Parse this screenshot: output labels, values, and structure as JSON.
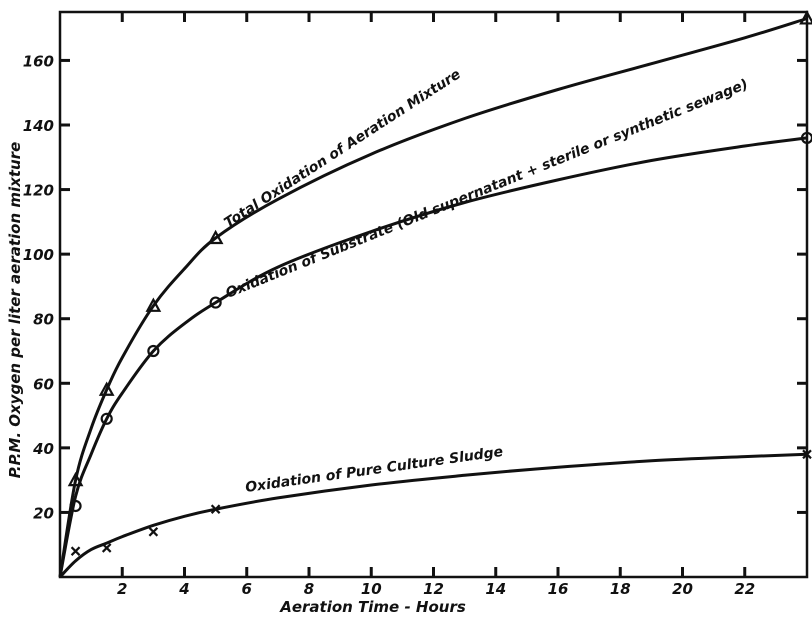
{
  "chart_data": {
    "type": "line",
    "xlabel": "Aeration Time - Hours",
    "ylabel": "P.P.M. Oxygen per liter aeration mixture",
    "xlim": [
      0,
      24
    ],
    "ylim": [
      0,
      175
    ],
    "x_ticks": [
      2,
      4,
      6,
      8,
      10,
      12,
      14,
      16,
      18,
      20,
      22
    ],
    "y_ticks": [
      20,
      40,
      60,
      80,
      100,
      120,
      140,
      160
    ],
    "grid": false,
    "legend": "none",
    "series": [
      {
        "name": "Total Oxidation of Aeration Mixture",
        "marker": "triangle",
        "points": [
          [
            0.5,
            30
          ],
          [
            1.5,
            58
          ],
          [
            3,
            84
          ],
          [
            5,
            105
          ],
          [
            24,
            173
          ]
        ],
        "curve": [
          [
            0,
            0
          ],
          [
            0.5,
            30
          ],
          [
            1,
            46
          ],
          [
            1.5,
            58
          ],
          [
            2,
            68
          ],
          [
            3,
            84
          ],
          [
            4,
            95.5
          ],
          [
            5,
            105
          ],
          [
            7,
            117
          ],
          [
            10,
            131
          ],
          [
            13,
            142
          ],
          [
            16,
            151
          ],
          [
            19,
            159
          ],
          [
            22,
            167
          ],
          [
            24,
            173
          ]
        ]
      },
      {
        "name": "Oxidation of Substrate (Old supernatant + sterile or synthetic sewage)",
        "marker": "circle",
        "points": [
          [
            0.5,
            22
          ],
          [
            1.5,
            49
          ],
          [
            3,
            70
          ],
          [
            5,
            85
          ],
          [
            24,
            136
          ]
        ],
        "curve": [
          [
            0,
            0
          ],
          [
            0.5,
            25
          ],
          [
            1,
            38
          ],
          [
            1.5,
            49
          ],
          [
            2,
            57
          ],
          [
            3,
            70
          ],
          [
            4,
            78.5
          ],
          [
            5,
            85
          ],
          [
            7,
            96
          ],
          [
            10,
            107
          ],
          [
            13,
            116
          ],
          [
            16,
            123
          ],
          [
            19,
            129
          ],
          [
            22,
            133.5
          ],
          [
            24,
            136
          ]
        ]
      },
      {
        "name": "Oxidation of Pure Culture Sludge",
        "marker": "x",
        "points": [
          [
            0.5,
            8
          ],
          [
            1.5,
            9
          ],
          [
            3,
            14
          ],
          [
            5,
            21
          ],
          [
            24,
            38
          ]
        ],
        "curve": [
          [
            0,
            0
          ],
          [
            0.5,
            5
          ],
          [
            1,
            8.5
          ],
          [
            1.5,
            10.5
          ],
          [
            2,
            12.5
          ],
          [
            3,
            16
          ],
          [
            4,
            18.8
          ],
          [
            5,
            21
          ],
          [
            7,
            24.5
          ],
          [
            10,
            28.5
          ],
          [
            13,
            31.5
          ],
          [
            16,
            34
          ],
          [
            19,
            36
          ],
          [
            22,
            37.3
          ],
          [
            24,
            38
          ]
        ]
      }
    ]
  }
}
